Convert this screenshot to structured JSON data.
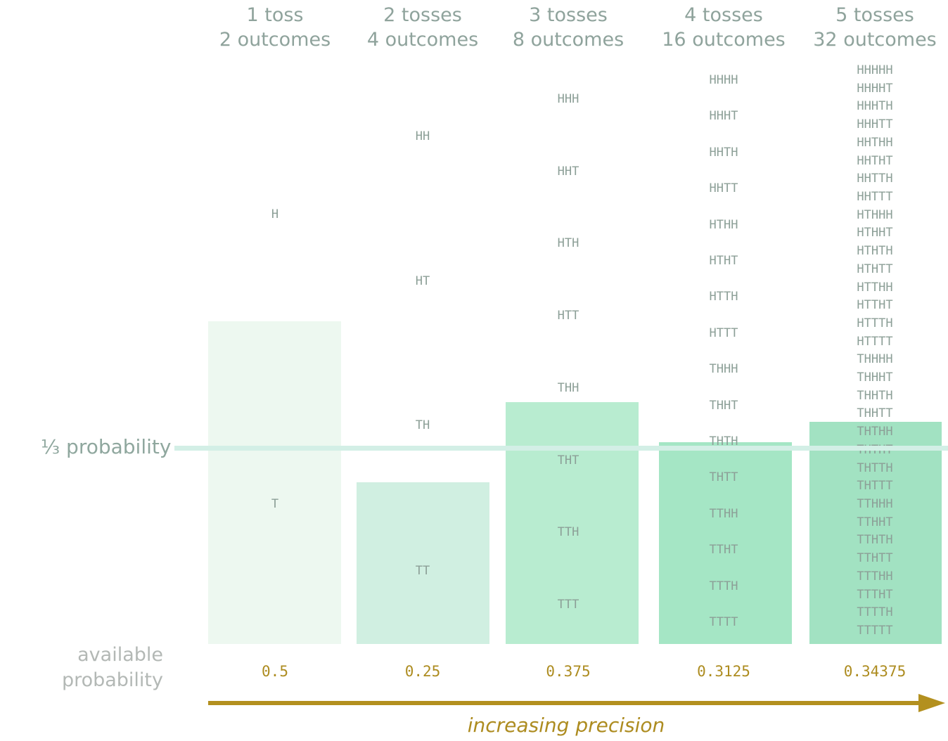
{
  "columns": [
    {
      "heading": [
        "1 toss",
        "2 outcomes"
      ],
      "available": "0.5",
      "bar_color": "#edf8f0",
      "bar_fraction": 0.5,
      "outcomes": [
        "H",
        "T"
      ],
      "included": [
        "T"
      ]
    },
    {
      "heading": [
        "2 tosses",
        "4 outcomes"
      ],
      "available": "0.25",
      "bar_color": "#d0efe1",
      "bar_fraction": 0.25,
      "outcomes": [
        "HH",
        "HT",
        "TH",
        "TT"
      ],
      "included": [
        "TT"
      ]
    },
    {
      "heading": [
        "3 tosses",
        "8 outcomes"
      ],
      "available": "0.375",
      "bar_color": "#b8ecd0",
      "bar_fraction": 0.375,
      "outcomes": [
        "HHH",
        "HHT",
        "HTH",
        "HTT",
        "THH",
        "THT",
        "TTH",
        "TTT"
      ],
      "included": [
        "THT",
        "TTH",
        "TTT"
      ]
    },
    {
      "heading": [
        "4 tosses",
        "16 outcomes"
      ],
      "available": "0.3125",
      "bar_color": "#a5e6c5",
      "bar_fraction": 0.3125,
      "outcomes": [
        "HHHH",
        "HHHT",
        "HHTH",
        "HHTT",
        "HTHH",
        "HTHT",
        "HTTH",
        "HTTT",
        "THHH",
        "THHT",
        "THTH",
        "THTT",
        "TTHH",
        "TTHT",
        "TTTH",
        "TTTT"
      ],
      "included": [
        "THTT",
        "TTHH",
        "TTHT",
        "TTTH",
        "TTTT"
      ]
    },
    {
      "heading": [
        "5 tosses",
        "32 outcomes"
      ],
      "available": "0.34375",
      "bar_color": "#a2e2c2",
      "bar_fraction": 0.34375,
      "outcomes": [
        "HHHHH",
        "HHHHT",
        "HHHTH",
        "HHHTT",
        "HHTHH",
        "HHTHT",
        "HHTTH",
        "HHTTT",
        "HTHHH",
        "HTHHT",
        "HTHTH",
        "HTHTT",
        "HTTHH",
        "HTTHT",
        "HTTTH",
        "HTTTT",
        "THHHH",
        "THHHT",
        "THHTH",
        "THHTT",
        "THTHH",
        "THTHT",
        "THTTH",
        "THTTT",
        "TTHHH",
        "TTHHT",
        "TTHTH",
        "TTHTT",
        "TTTHH",
        "TTTHT",
        "TTTTH",
        "TTTTT"
      ],
      "included": [
        "THTHT",
        "THTTH",
        "THTTT",
        "TTHHH",
        "TTHHT",
        "TTHTH",
        "TTHTT",
        "TTTHH",
        "TTTHT",
        "TTTTH",
        "TTTTT"
      ]
    }
  ],
  "target_label": "⅓ probability",
  "target_value": 0.3333,
  "available_label": [
    "available",
    "probability"
  ],
  "precision_label": "increasing precision",
  "colors": {
    "heading": "#8fa39c",
    "sequence_text": "#8c9f97",
    "third_line": "#d3efe6",
    "accent": "#b3901f"
  }
}
